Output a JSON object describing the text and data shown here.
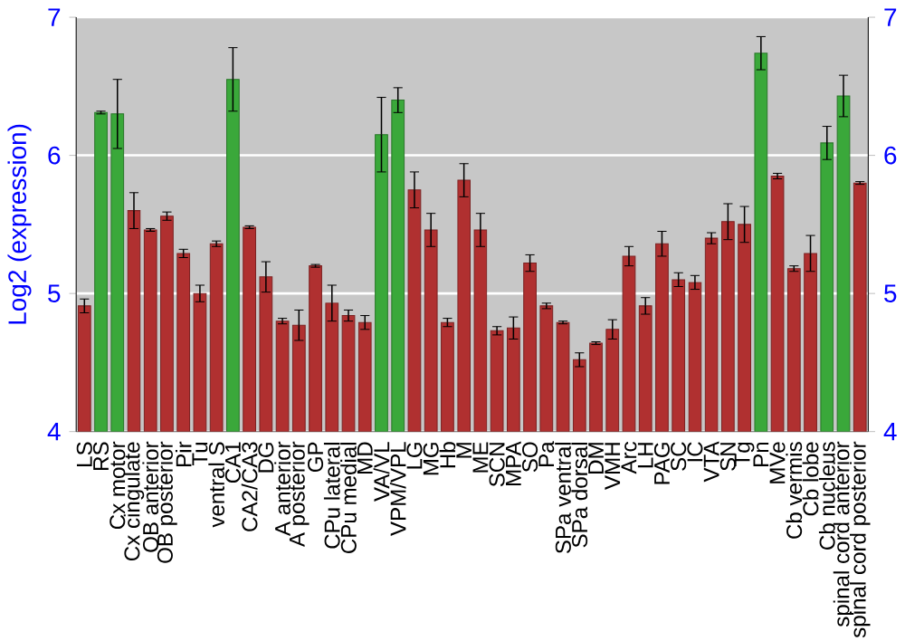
{
  "chart_data": {
    "type": "bar",
    "ylabel": "Log2 (expression)",
    "categories": [
      "LS",
      "RS",
      "Cx motor",
      "Cx cingulate",
      "OB anterior",
      "OB posterior",
      "Pir",
      "Tu",
      "ventral S",
      "CA1",
      "CA2/CA3",
      "DG",
      "A anterior",
      "A posterior",
      "GP",
      "CPu lateral",
      "CPu medial",
      "MD",
      "VA/VL",
      "VPM/VPL",
      "LG",
      "MG",
      "Hb",
      "M",
      "ME",
      "SCN",
      "MPA",
      "SO",
      "Pa",
      "SPa ventral",
      "SPa dorsal",
      "DM",
      "VMH",
      "Arc",
      "LH",
      "PAG",
      "SC",
      "IC",
      "VTA",
      "SN",
      "Tg",
      "Pn",
      "MVe",
      "Cb vermis",
      "Cb lobe",
      "Cb nucleus",
      "spinal cord anterior",
      "spinal cord posterior"
    ],
    "values": [
      4.91,
      6.31,
      6.3,
      5.6,
      5.46,
      5.56,
      5.29,
      5.0,
      5.36,
      6.55,
      5.48,
      5.12,
      4.8,
      4.77,
      5.2,
      4.93,
      4.84,
      4.79,
      6.15,
      6.4,
      5.75,
      5.46,
      4.79,
      5.82,
      5.46,
      4.73,
      4.75,
      5.22,
      4.91,
      4.79,
      4.52,
      4.64,
      4.74,
      5.27,
      4.91,
      5.36,
      5.1,
      5.08,
      5.4,
      5.52,
      5.5,
      6.74,
      5.85,
      5.18,
      5.29,
      6.09,
      6.43,
      5.8
    ],
    "errors": [
      0.05,
      0.01,
      0.25,
      0.13,
      0.01,
      0.03,
      0.03,
      0.06,
      0.02,
      0.23,
      0.01,
      0.11,
      0.02,
      0.11,
      0.01,
      0.13,
      0.04,
      0.05,
      0.27,
      0.09,
      0.13,
      0.12,
      0.03,
      0.12,
      0.12,
      0.03,
      0.08,
      0.06,
      0.02,
      0.01,
      0.05,
      0.01,
      0.07,
      0.07,
      0.06,
      0.09,
      0.05,
      0.05,
      0.04,
      0.13,
      0.13,
      0.12,
      0.02,
      0.02,
      0.13,
      0.12,
      0.15,
      0.01
    ],
    "colors": [
      "#b03030",
      "#3aa83a",
      "#3aa83a",
      "#b03030",
      "#b03030",
      "#b03030",
      "#b03030",
      "#b03030",
      "#b03030",
      "#3aa83a",
      "#b03030",
      "#b03030",
      "#b03030",
      "#b03030",
      "#b03030",
      "#b03030",
      "#b03030",
      "#b03030",
      "#3aa83a",
      "#3aa83a",
      "#b03030",
      "#b03030",
      "#b03030",
      "#b03030",
      "#b03030",
      "#b03030",
      "#b03030",
      "#b03030",
      "#b03030",
      "#b03030",
      "#b03030",
      "#b03030",
      "#b03030",
      "#b03030",
      "#b03030",
      "#b03030",
      "#b03030",
      "#b03030",
      "#b03030",
      "#b03030",
      "#b03030",
      "#3aa83a",
      "#b03030",
      "#b03030",
      "#b03030",
      "#3aa83a",
      "#3aa83a",
      "#b03030"
    ],
    "ylim": [
      4,
      7
    ],
    "yticks": [
      4,
      5,
      6,
      7
    ],
    "y2lim": [
      4,
      7
    ],
    "y2ticks": [
      4,
      5,
      6,
      7
    ],
    "grid": "y"
  }
}
